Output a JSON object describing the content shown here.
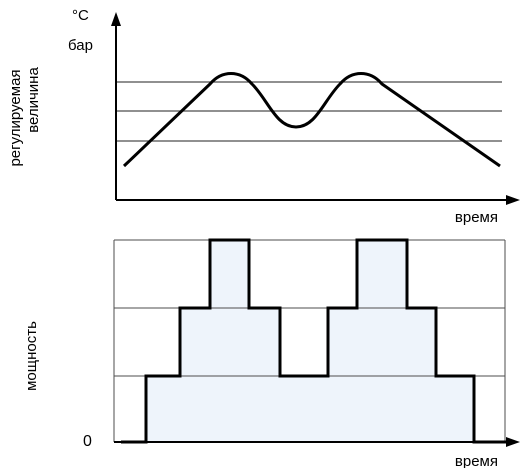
{
  "top_panel": {
    "unit_line_1": "°C",
    "unit_line_2": "бар",
    "ylabel_line_1": "регулируемая",
    "ylabel_line_2": "величина",
    "xlabel": "время"
  },
  "bottom_panel": {
    "ylabel": "мощность",
    "zero_label": "0",
    "xlabel": "время"
  },
  "colors": {
    "line": "#000000",
    "grid": "#4d4d4d",
    "fill": "#eef4fb",
    "axis": "#000000"
  }
}
